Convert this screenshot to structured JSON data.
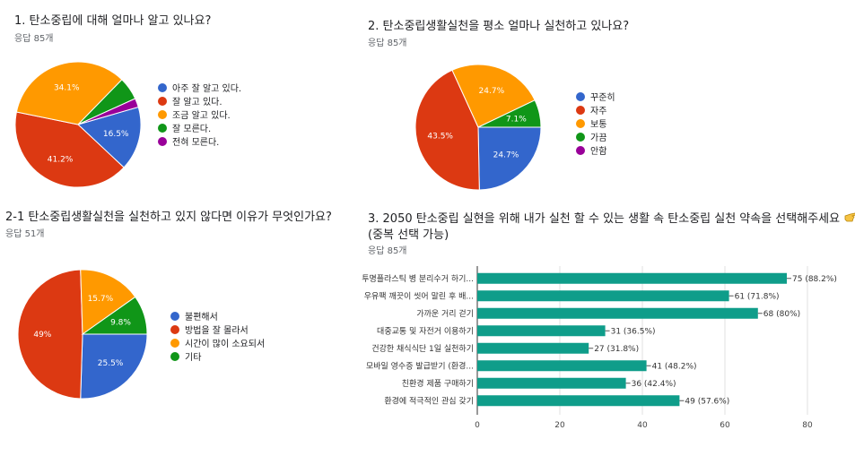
{
  "colors": {
    "blue": "#3366cc",
    "red": "#dc3912",
    "orange": "#ff9900",
    "green": "#109618",
    "purple": "#990099",
    "teal": "#0f9d8a"
  },
  "chart_data": [
    {
      "type": "pie",
      "title": "1. 탄소중립에 대해 얼마나 알고 있나요?",
      "subtitle": "응답 85개",
      "labels": [
        "아주 잘 알고 있다.",
        "잘 알고 있다.",
        "조금 알고 있다.",
        "잘 모른다.",
        "전혀 모른다."
      ],
      "values": [
        16.5,
        41.2,
        34.1,
        5.9,
        2.3
      ],
      "value_labels": [
        "16.5%",
        "41.2%",
        "34.1%",
        "",
        ""
      ],
      "colors": [
        "#3366cc",
        "#dc3912",
        "#ff9900",
        "#109618",
        "#990099"
      ],
      "legend": "right"
    },
    {
      "type": "pie",
      "title": "2. 탄소중립생활실천을 평소 얼마나 실천하고 있나요?",
      "subtitle": "응답 85개",
      "labels": [
        "꾸준히",
        "자주",
        "보통",
        "가끔",
        "안함"
      ],
      "values": [
        24.7,
        43.5,
        24.7,
        7.1,
        0
      ],
      "value_labels": [
        "24.7%",
        "43.5%",
        "24.7%",
        "7.1%",
        ""
      ],
      "colors": [
        "#3366cc",
        "#dc3912",
        "#ff9900",
        "#109618",
        "#990099"
      ],
      "legend": "right"
    },
    {
      "type": "pie",
      "title": "2-1 탄소중립생활실천을 실천하고 있지 않다면 이유가 무엇인가요?",
      "subtitle": "응답 51개",
      "labels": [
        "불편해서",
        "방법을 잘 몰라서",
        "시간이 많이 소요되서",
        "기타"
      ],
      "values": [
        25.5,
        49,
        15.7,
        9.8
      ],
      "value_labels": [
        "25.5%",
        "49%",
        "15.7%",
        "9.8%"
      ],
      "colors": [
        "#3366cc",
        "#dc3912",
        "#ff9900",
        "#109618"
      ],
      "legend": "right"
    },
    {
      "type": "bar",
      "orientation": "horizontal",
      "title": "3. 2050 탄소중립 실현을 위해 내가 실천 할 수 있는 생활 속 탄소중립 실천 약속을 선택해주세요",
      "title_line2": "(중복 선택 가능)",
      "subtitle": "응답 85개",
      "categories": [
        "투명플라스틱 병 분리수거 하기...",
        "우유팩 깨끗이 씻어 말린 후 배...",
        "가까운 거리 걷기",
        "대중교통 및 자전거 이용하기",
        "건강한 채식식단 1일 실천하기",
        "모바일 영수증 발급받기 (환경...",
        "친환경 제품 구매하기",
        "환경에 적극적인 관심 갖기"
      ],
      "values": [
        75,
        61,
        68,
        31,
        27,
        41,
        36,
        49
      ],
      "value_labels": [
        "75 (88.2%)",
        "61 (71.8%)",
        "68 (80%)",
        "31 (36.5%)",
        "27 (31.8%)",
        "41 (48.2%)",
        "36 (42.4%)",
        "49 (57.6%)"
      ],
      "xlim": [
        0,
        80
      ],
      "xticks": [
        "0",
        "20",
        "40",
        "60",
        "80"
      ],
      "color": "#0f9d8a",
      "grid": true
    }
  ]
}
